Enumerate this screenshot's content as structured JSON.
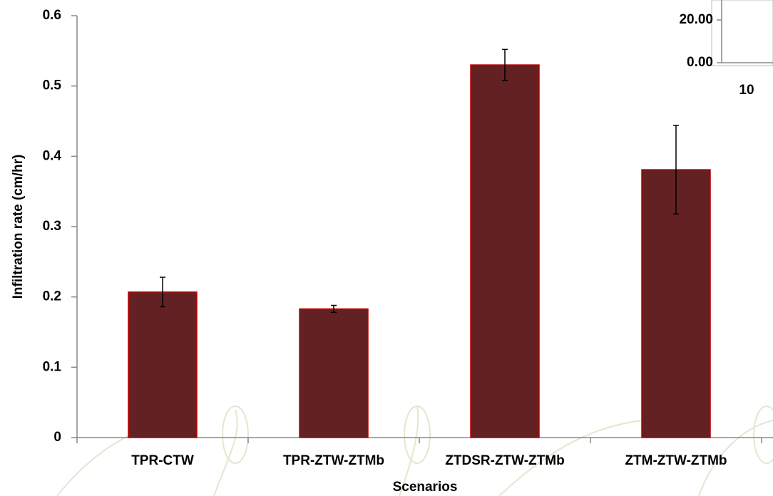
{
  "chart_data": [
    {
      "type": "bar",
      "x_label": "Scenarios",
      "y_label": "Infiltration rate (cm/hr)",
      "categories": [
        "TPR-CTW",
        "TPR-ZTW-ZTMb",
        "ZTDSR-ZTW-ZTMb",
        "ZTM-ZTW-ZTMb"
      ],
      "values": [
        0.207,
        0.183,
        0.53,
        0.381
      ],
      "errors": [
        0.021,
        0.005,
        0.022,
        0.063
      ],
      "color": "#632123",
      "edge_color": "#c00000",
      "ylim": [
        0,
        0.6
      ],
      "yticks": [
        0,
        0.1,
        0.2,
        0.3,
        0.4,
        0.5,
        0.6
      ]
    },
    {
      "type": "line",
      "ylim": [
        0,
        20
      ],
      "yticks": [
        {
          "value": 0,
          "label": "0.00"
        },
        {
          "value": 20,
          "label": "20.00"
        }
      ],
      "xticks": [
        10
      ]
    }
  ]
}
